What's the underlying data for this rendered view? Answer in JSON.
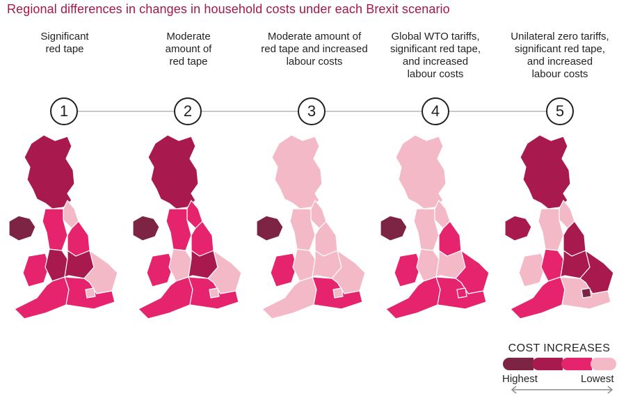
{
  "title": "Regional differences in changes in household costs under each Brexit scenario",
  "scenarios": [
    {
      "number": "1",
      "caption": "Significant\nred tape",
      "regions": {
        "ni": 0,
        "scotland": 1,
        "north_east": 3,
        "north_west": 2,
        "yorkshire": 2,
        "wales": 2,
        "west_midlands": 1,
        "east_midlands": 1,
        "east": 3,
        "south_west": 2,
        "south_east": 2,
        "london": 3
      }
    },
    {
      "number": "2",
      "caption": "Moderate\namount of\nred tape",
      "regions": {
        "ni": 0,
        "scotland": 1,
        "north_east": 2,
        "north_west": 2,
        "yorkshire": 2,
        "wales": 2,
        "west_midlands": 3,
        "east_midlands": 1,
        "east": 3,
        "south_west": 2,
        "south_east": 2,
        "london": 3
      }
    },
    {
      "number": "3",
      "caption": "Moderate amount of\nred tape and increased\nlabour costs",
      "regions": {
        "ni": 0,
        "scotland": 3,
        "north_east": 3,
        "north_west": 3,
        "yorkshire": 3,
        "wales": 2,
        "west_midlands": 3,
        "east_midlands": 3,
        "east": 3,
        "south_west": 3,
        "south_east": 2,
        "london": 3
      }
    },
    {
      "number": "4",
      "caption": "Global WTO tariffs,\nsignificant red tape,\nand increased\nlabour costs",
      "regions": {
        "ni": 0,
        "scotland": 3,
        "north_east": 3,
        "north_west": 3,
        "yorkshire": 2,
        "wales": 2,
        "west_midlands": 3,
        "east_midlands": 3,
        "east": 2,
        "south_west": 2,
        "south_east": 2,
        "london": 2
      }
    },
    {
      "number": "5",
      "caption": "Unilateral zero tariffs,\nsignificant red tape,\nand increased\nlabour costs",
      "regions": {
        "ni": 1,
        "scotland": 1,
        "north_east": 3,
        "north_west": 3,
        "yorkshire": 1,
        "wales": 3,
        "west_midlands": 2,
        "east_midlands": 1,
        "east": 1,
        "south_west": 2,
        "south_east": 3,
        "london": 0
      }
    }
  ],
  "legend": {
    "title": "COST INCREASES",
    "highest_label": "Highest",
    "lowest_label": "Lowest",
    "colors": [
      "#7d2343",
      "#a8194d",
      "#e6246e",
      "#f4b9c6"
    ]
  },
  "icons": {
    "arrow": "double-arrow-icon"
  }
}
